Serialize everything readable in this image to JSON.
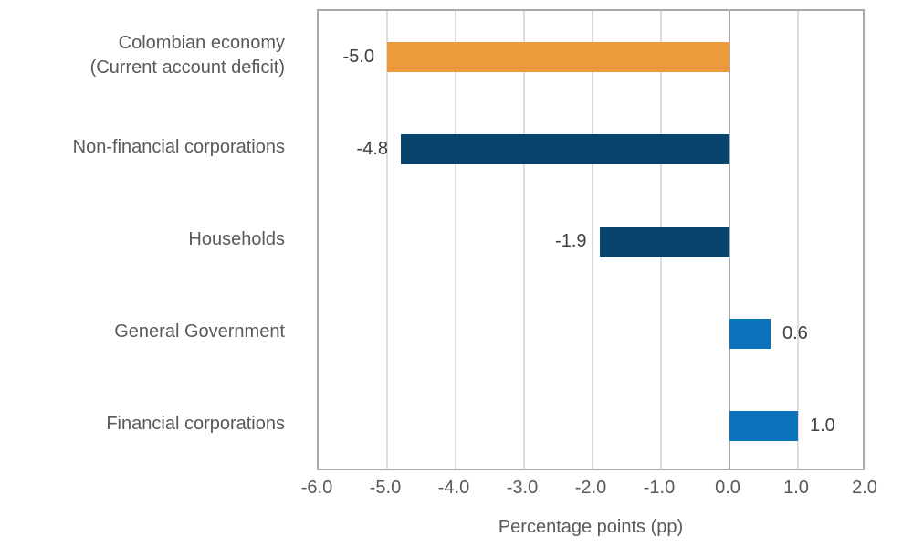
{
  "chart_data": {
    "type": "bar",
    "orientation": "horizontal",
    "categories": [
      "Colombian economy\n(Current account deficit)",
      "Non-financial corporations",
      "Households",
      "General Government",
      "Financial corporations"
    ],
    "values": [
      -5.0,
      -4.8,
      -1.9,
      0.6,
      1.0
    ],
    "value_labels": [
      "-5.0",
      "-4.8",
      "-1.9",
      "0.6",
      "1.0"
    ],
    "bar_colors": [
      "#EC9B3C",
      "#07456F",
      "#07456F",
      "#0C72BC",
      "#0C72BC"
    ],
    "xlabel": "Percentage points (pp)",
    "xlim": [
      -6.0,
      2.0
    ],
    "xticks": [
      -6.0,
      -5.0,
      -4.0,
      -3.0,
      -2.0,
      -1.0,
      0.0,
      1.0,
      2.0
    ],
    "xtick_labels": [
      "-6.0",
      "-5.0",
      "-4.0",
      "-3.0",
      "-2.0",
      "-1.0",
      "0.0",
      "1.0",
      "2.0"
    ],
    "grid": "vertical",
    "zero_line_emphasized": true,
    "legend": "none",
    "title": ""
  },
  "colors": {
    "background": "#FFFFFF",
    "orange_bar": "#EC9B3C",
    "navy_bar": "#07456F",
    "blue_bar": "#0C72BC",
    "grid_line": "#DDDDDD",
    "axis_border": "#A8A8A8",
    "zero_line": "#A8A8A8",
    "category_text": "#595959",
    "value_text": "#3F3F3F",
    "tick_text": "#595959",
    "axis_title_text": "#595959"
  }
}
